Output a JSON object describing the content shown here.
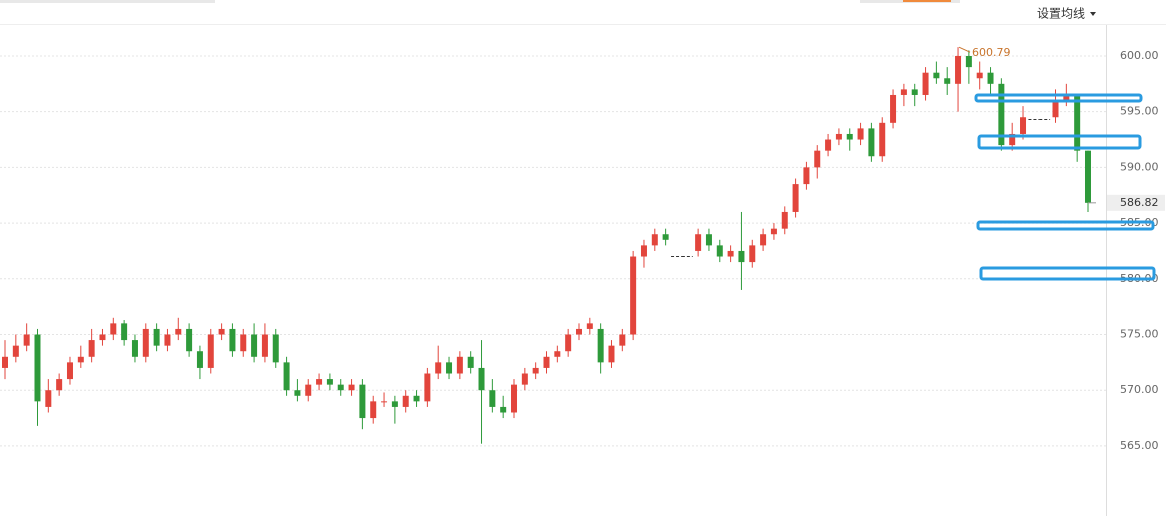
{
  "toolbar": {
    "ma_button": "设置均线"
  },
  "chart_data": {
    "type": "candlestick",
    "up_color": "#e2453c",
    "down_color": "#2e9a3a",
    "grid": true,
    "ylim": [
      558.71,
      602.78
    ],
    "yticks": [
      {
        "value": 565,
        "label": "565.00"
      },
      {
        "value": 570,
        "label": "570.00"
      },
      {
        "value": 575,
        "label": "575.00"
      },
      {
        "value": 580,
        "label": "580.00"
      },
      {
        "value": 585,
        "label": "585.00"
      },
      {
        "value": 590,
        "label": "590.00"
      },
      {
        "value": 595,
        "label": "595.00"
      },
      {
        "value": 600,
        "label": "600.00"
      }
    ],
    "open": [
      572,
      573,
      574,
      575,
      568.5,
      570,
      571,
      572.5,
      573,
      574.5,
      575,
      576,
      574.5,
      573,
      575.5,
      574,
      575,
      575.5,
      573.5,
      572,
      575,
      575.5,
      573.5,
      575,
      573,
      575,
      572.5,
      570,
      569.5,
      570.5,
      571,
      570.5,
      570,
      570.5,
      567.5,
      569,
      569,
      568.5,
      569.5,
      569,
      571.5,
      572.5,
      571.5,
      573,
      572,
      570,
      568.5,
      568,
      570.5,
      571.5,
      572,
      573,
      573.5,
      575,
      575.5,
      575.5,
      572.5,
      574,
      575,
      582,
      583,
      584,
      582,
      582,
      582.5,
      584,
      583,
      582,
      582.5,
      581.5,
      583,
      584,
      584.5,
      586,
      588.5,
      590,
      591.5,
      592.5,
      593,
      592.5,
      593.5,
      591,
      594,
      596.5,
      597,
      596.5,
      598.5,
      598,
      597.5,
      600,
      598,
      598.5,
      597.5,
      592,
      593,
      594.3,
      594.3,
      594.5,
      596,
      596.5,
      591.5
    ],
    "high": [
      574.5,
      575,
      576,
      575.5,
      571,
      571.5,
      573,
      574,
      575.5,
      575.5,
      576.5,
      576.3,
      575,
      576,
      576,
      575.5,
      576.5,
      576,
      574,
      575.5,
      576,
      576,
      575.5,
      576,
      576,
      575.5,
      573,
      571,
      571,
      571.5,
      571.5,
      571,
      571,
      571,
      569.5,
      569.8,
      569.5,
      570,
      570,
      572,
      574,
      573,
      573.5,
      573.5,
      574.5,
      571,
      569.5,
      571,
      572,
      572.5,
      573.5,
      574,
      575.5,
      576,
      576.5,
      576,
      574.5,
      575.5,
      582.5,
      583.5,
      584.5,
      584.5,
      582,
      582,
      584.5,
      584.5,
      583.5,
      583,
      586,
      583.5,
      584.5,
      585,
      586.5,
      589,
      590.5,
      592,
      593,
      593.5,
      593.5,
      594,
      594,
      594.5,
      597,
      597.5,
      597.5,
      599,
      599.5,
      599,
      600.79,
      600.5,
      599.5,
      599,
      598,
      594,
      595.5,
      594.3,
      594.3,
      597,
      597.5,
      596.5,
      591.5
    ],
    "low": [
      571,
      572.5,
      573.5,
      566.8,
      568,
      569.5,
      570.5,
      572,
      572.5,
      574,
      574.5,
      574,
      572.5,
      572.5,
      573.5,
      573.5,
      574.5,
      573,
      571,
      571.5,
      574.5,
      573,
      573,
      572.5,
      572.5,
      572,
      569.5,
      569,
      569,
      570,
      570,
      569.5,
      569.5,
      566.5,
      567,
      568.5,
      567,
      568,
      568.5,
      568.5,
      571,
      571,
      571,
      571.5,
      565.2,
      568,
      567.5,
      567.5,
      570,
      571,
      571.5,
      572.5,
      573,
      574.5,
      575,
      571.5,
      572,
      573.5,
      574.5,
      581,
      582.5,
      583,
      582,
      582,
      582,
      582.5,
      581.5,
      581.5,
      579,
      581,
      582.5,
      583.5,
      584,
      585.5,
      588,
      589,
      591,
      592,
      591.5,
      592,
      590.5,
      590.5,
      593.5,
      595.5,
      595.5,
      596,
      597.5,
      596.5,
      595,
      597.5,
      597,
      596.5,
      591.5,
      591.5,
      592.5,
      594.3,
      594.3,
      594,
      595.5,
      590.5,
      586
    ],
    "close": [
      573,
      574,
      575,
      569,
      570,
      571,
      572.5,
      573,
      574.5,
      575,
      576,
      574.5,
      573,
      575.5,
      574,
      575,
      575.5,
      573.5,
      572,
      575,
      575.5,
      573.5,
      575,
      573,
      575,
      572.5,
      570,
      569.5,
      570.5,
      571,
      570.5,
      570,
      570.5,
      567.5,
      569,
      569,
      568.5,
      569.5,
      569,
      571.5,
      572.5,
      571.5,
      573,
      572,
      570,
      568.5,
      568,
      570.5,
      571.5,
      572,
      573,
      573.5,
      575,
      575.5,
      576,
      572.5,
      574,
      575,
      582,
      583,
      584,
      583.5,
      582,
      582,
      584,
      583,
      582,
      582.5,
      581.5,
      583,
      584,
      584.5,
      586,
      588.5,
      590,
      591.5,
      592.5,
      593,
      592.5,
      593.5,
      591,
      594,
      596.5,
      597,
      596.5,
      598.5,
      598,
      597.5,
      600,
      599,
      598.5,
      597.5,
      592,
      593,
      594.5,
      594.3,
      594.3,
      596,
      596.5,
      591.5,
      586.82
    ]
  }
}
